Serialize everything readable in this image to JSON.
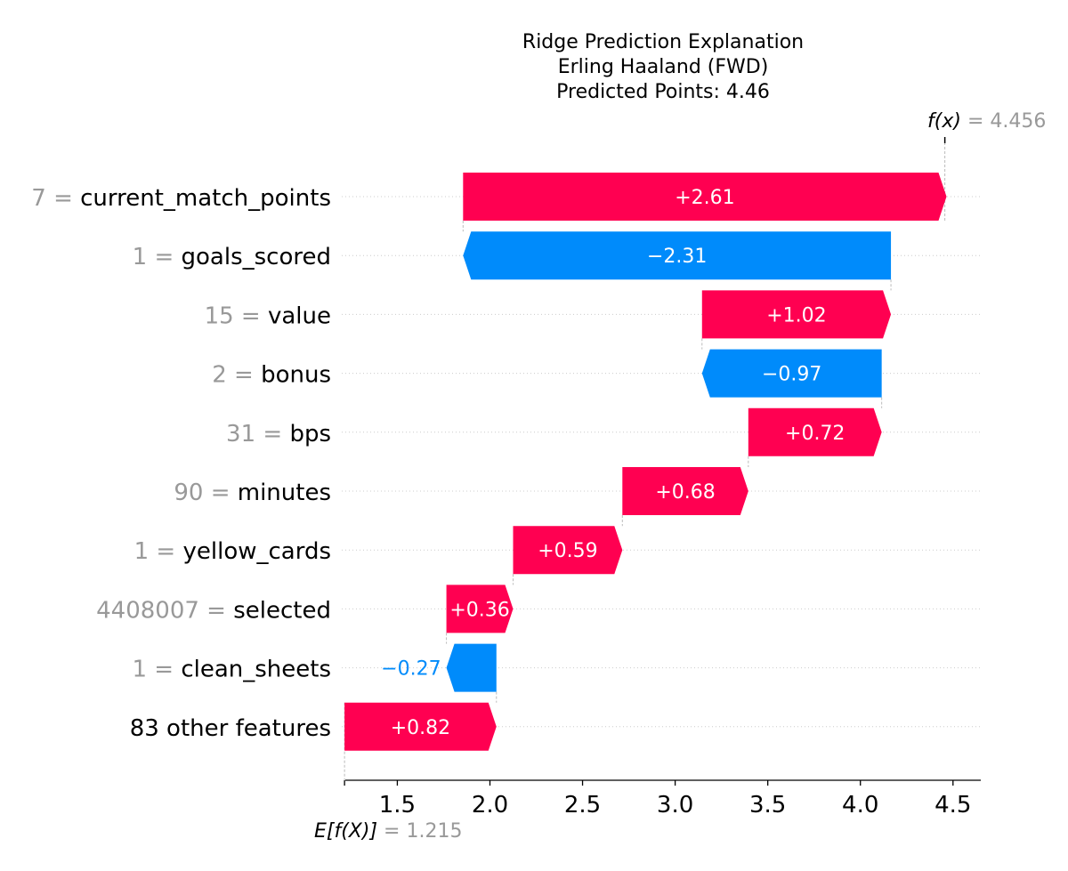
{
  "title_lines": [
    "Ridge Prediction Explanation",
    "Erling Haaland (FWD)",
    "Predicted Points: 4.46"
  ],
  "colors": {
    "positive": "#ff0051",
    "negative": "#008bfb",
    "feature_value_text": "#999999",
    "gridline": "#cccccc"
  },
  "chart_data": {
    "type": "waterfall",
    "title": "Ridge Prediction Explanation\nErling Haaland (FWD)\nPredicted Points: 4.46",
    "base_value": 1.215,
    "final_value": 4.456,
    "base_label": "E[f(X)]",
    "base_value_text": "= 1.215",
    "final_label": "f(x)",
    "final_value_text": "= 4.456",
    "xlim": [
      1.2,
      4.65
    ],
    "xticks": [
      1.5,
      2.0,
      2.5,
      3.0,
      3.5,
      4.0,
      4.5
    ],
    "xtick_labels": [
      "1.5",
      "2.0",
      "2.5",
      "3.0",
      "3.5",
      "4.0",
      "4.5"
    ],
    "grid": false,
    "features": [
      {
        "value": "7",
        "name": "current_match_points",
        "contribution": 2.61,
        "label": "+2.61"
      },
      {
        "value": "1",
        "name": "goals_scored",
        "contribution": -2.31,
        "label": "−2.31"
      },
      {
        "value": "15",
        "name": "value",
        "contribution": 1.02,
        "label": "+1.02"
      },
      {
        "value": "2",
        "name": "bonus",
        "contribution": -0.97,
        "label": "−0.97"
      },
      {
        "value": "31",
        "name": "bps",
        "contribution": 0.72,
        "label": "+0.72"
      },
      {
        "value": "90",
        "name": "minutes",
        "contribution": 0.68,
        "label": "+0.68"
      },
      {
        "value": "1",
        "name": "yellow_cards",
        "contribution": 0.59,
        "label": "+0.59"
      },
      {
        "value": "4408007",
        "name": "selected",
        "contribution": 0.36,
        "label": "+0.36"
      },
      {
        "value": "1",
        "name": "clean_sheets",
        "contribution": -0.27,
        "label": "−0.27"
      },
      {
        "value": "",
        "name": "83 other features",
        "contribution": 0.82,
        "label": "+0.82"
      }
    ]
  }
}
